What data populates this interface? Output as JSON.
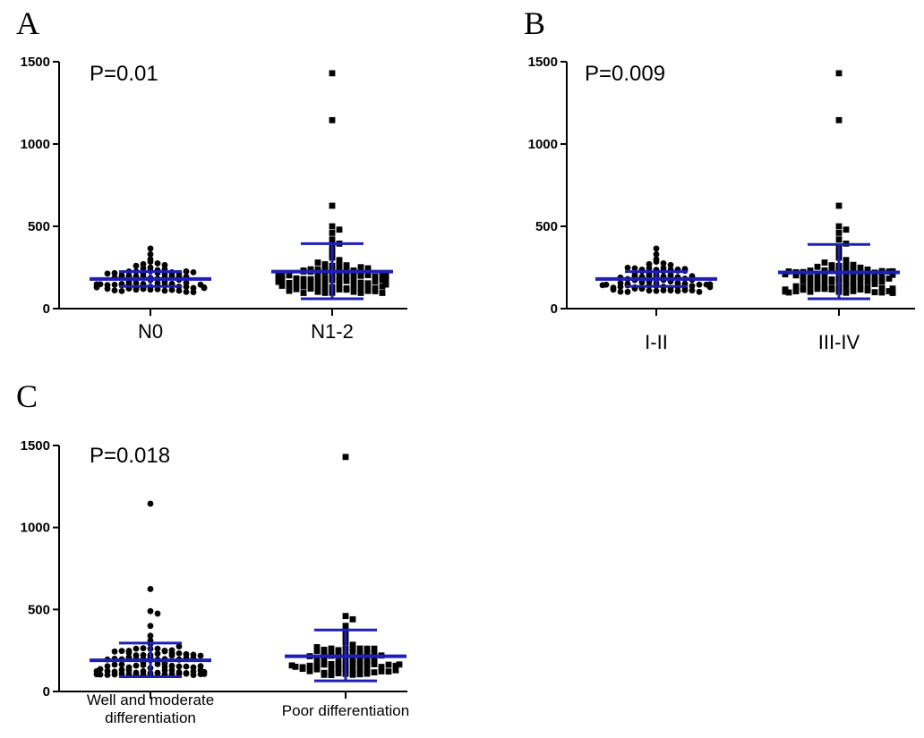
{
  "chart_data": [
    {
      "panel": "A",
      "type": "scatter",
      "annotation": "P=0.01",
      "categories": [
        "N0",
        "N1-2"
      ],
      "ylim": [
        0,
        1500
      ],
      "yticks": [
        0,
        500,
        1000,
        1500
      ],
      "markers": [
        "circle",
        "square"
      ],
      "summary_color": "#1f1fb4",
      "groups": [
        {
          "category": "N0",
          "mean": 180,
          "sd_low": 135,
          "sd_high": 225,
          "outliers": [
            365,
            330,
            300,
            285,
            275,
            270,
            265,
            260
          ],
          "bulk": {
            "min": 100,
            "max": 250,
            "count": 70
          }
        },
        {
          "category": "N1-2",
          "mean": 225,
          "sd_low": 60,
          "sd_high": 395,
          "outliers": [
            1430,
            1145,
            625,
            500,
            480,
            460,
            420,
            395,
            370,
            350,
            330,
            310,
            295,
            280
          ],
          "bulk": {
            "min": 95,
            "max": 270,
            "count": 90
          }
        }
      ]
    },
    {
      "panel": "B",
      "type": "scatter",
      "annotation": "P=0.009",
      "categories": [
        "I-II",
        "III-IV"
      ],
      "ylim": [
        0,
        1500
      ],
      "yticks": [
        0,
        500,
        1000,
        1500
      ],
      "markers": [
        "circle",
        "square"
      ],
      "summary_color": "#1f1fb4",
      "groups": [
        {
          "category": "I-II",
          "mean": 180,
          "sd_low": 135,
          "sd_high": 225,
          "outliers": [
            365,
            330,
            300,
            285,
            275,
            270,
            265
          ],
          "bulk": {
            "min": 100,
            "max": 250,
            "count": 70
          }
        },
        {
          "category": "III-IV",
          "mean": 220,
          "sd_low": 60,
          "sd_high": 390,
          "outliers": [
            1430,
            1145,
            625,
            500,
            480,
            460,
            420,
            395,
            370,
            350,
            330,
            310,
            295,
            280
          ],
          "bulk": {
            "min": 95,
            "max": 270,
            "count": 90
          }
        }
      ]
    },
    {
      "panel": "C",
      "type": "scatter",
      "annotation": "P=0.018",
      "categories": [
        "Well and moderate\ndifferentiation",
        "Poor differentiation"
      ],
      "ylim": [
        0,
        1500
      ],
      "yticks": [
        0,
        500,
        1000,
        1500
      ],
      "markers": [
        "circle",
        "square"
      ],
      "summary_color": "#1f1fb4",
      "groups": [
        {
          "category": "Well and moderate differentiation",
          "mean": 190,
          "sd_low": 90,
          "sd_high": 295,
          "outliers": [
            1145,
            625,
            490,
            475,
            400,
            340,
            310,
            290,
            275
          ],
          "bulk": {
            "min": 100,
            "max": 265,
            "count": 85
          }
        },
        {
          "category": "Poor differentiation",
          "mean": 215,
          "sd_low": 65,
          "sd_high": 375,
          "outliers": [
            1430,
            460,
            440,
            400,
            360,
            330,
            300,
            285,
            270
          ],
          "bulk": {
            "min": 100,
            "max": 270,
            "count": 75
          }
        }
      ]
    }
  ]
}
